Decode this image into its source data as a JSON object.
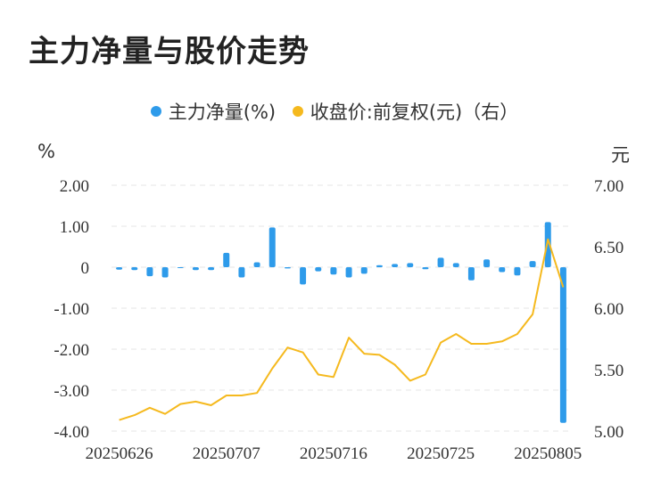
{
  "title": "主力净量与股价走势",
  "legend": {
    "series1": "主力净量(%)",
    "series2": "收盘价:前复权(元)（右）"
  },
  "units": {
    "left": "%",
    "right": "元"
  },
  "colors": {
    "bar": "#2E9BEA",
    "line": "#F5B91E",
    "grid": "#E6E6E6"
  },
  "chart_data": {
    "type": "bar+line",
    "title": "主力净量与股价走势",
    "x_tick_labels": [
      "20250626",
      "20250707",
      "20250716",
      "20250725",
      "20250805"
    ],
    "left_axis": {
      "ticks": [
        "2.00",
        "1.00",
        "0",
        "-1.00",
        "-2.00",
        "-3.00",
        "-4.00"
      ],
      "ylim": [
        -4,
        2
      ]
    },
    "right_axis": {
      "ticks": [
        "7.00",
        "6.50",
        "6.00",
        "5.50",
        "5.00"
      ],
      "ylim": [
        5,
        7
      ]
    },
    "grid": true,
    "legend_position": "top-center",
    "series": [
      {
        "name": "主力净量(%)",
        "type": "bar",
        "axis": "left",
        "values": [
          -0.06,
          -0.07,
          -0.22,
          -0.25,
          0.0,
          -0.07,
          -0.07,
          0.35,
          -0.25,
          0.12,
          0.97,
          -0.03,
          -0.42,
          -0.1,
          -0.18,
          -0.25,
          -0.16,
          0.05,
          0.08,
          0.1,
          -0.05,
          0.23,
          0.1,
          -0.32,
          0.19,
          -0.12,
          -0.2,
          0.15,
          1.1,
          -3.8
        ]
      },
      {
        "name": "收盘价:前复权(元)（右）",
        "type": "line",
        "axis": "right",
        "values": [
          5.09,
          5.13,
          5.19,
          5.14,
          5.22,
          5.24,
          5.21,
          5.29,
          5.29,
          5.31,
          5.51,
          5.68,
          5.64,
          5.46,
          5.44,
          5.76,
          5.63,
          5.62,
          5.54,
          5.41,
          5.46,
          5.72,
          5.79,
          5.71,
          5.71,
          5.73,
          5.79,
          5.95,
          6.56,
          6.17
        ]
      }
    ]
  }
}
